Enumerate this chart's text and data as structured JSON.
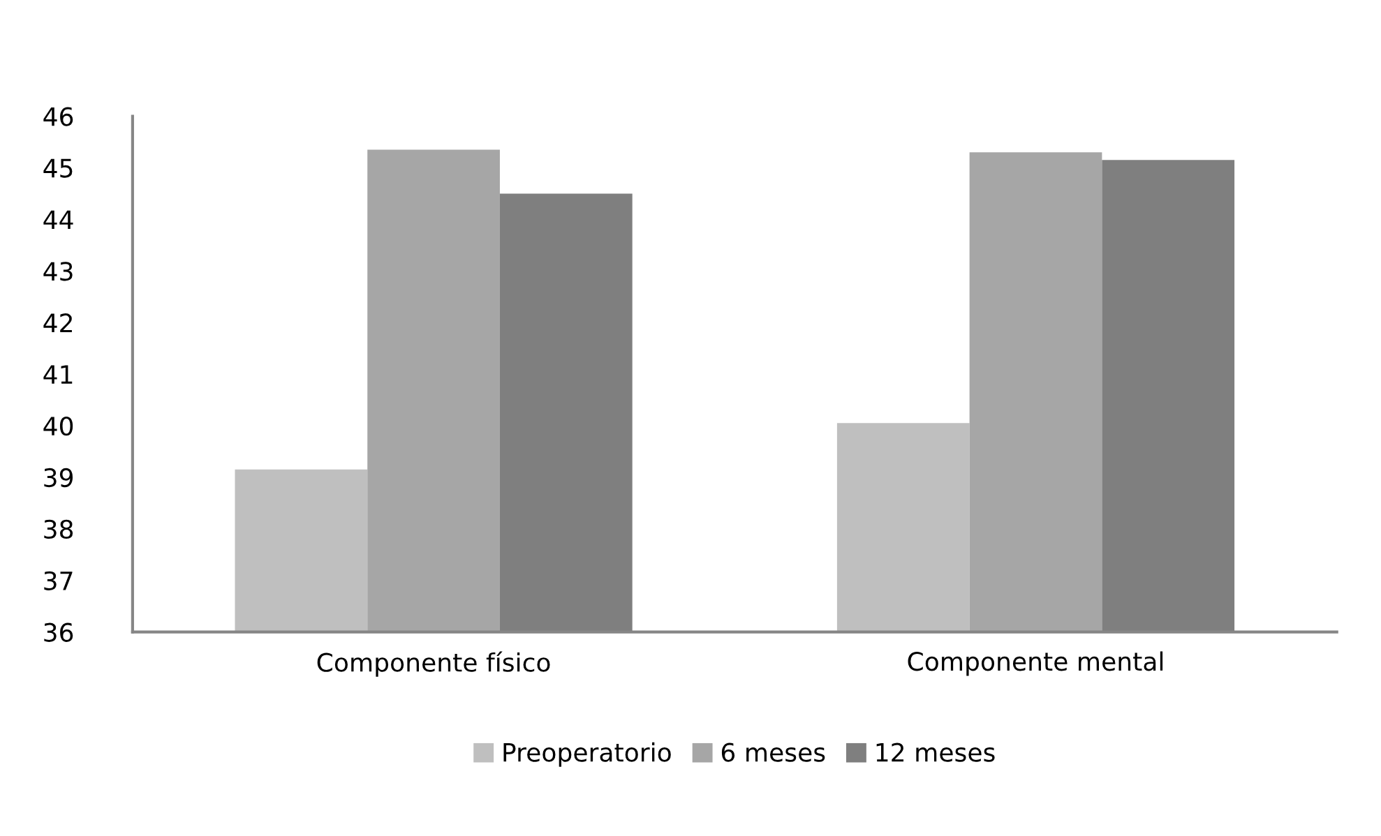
{
  "chart_data": {
    "type": "bar",
    "categories": [
      "Componente físico",
      "Componente mental"
    ],
    "series": [
      {
        "name": "Preoperatorio",
        "color": "#bfbfbf",
        "values": [
          39.15,
          40.05
        ]
      },
      {
        "name": "6 meses",
        "color": "#a6a6a6",
        "values": [
          45.35,
          45.3
        ]
      },
      {
        "name": "12 meses",
        "color": "#7f7f7f",
        "values": [
          44.5,
          45.15
        ]
      }
    ],
    "ylim": [
      36,
      46
    ],
    "yticks": [
      36,
      37,
      38,
      39,
      40,
      41,
      42,
      43,
      44,
      45,
      46
    ],
    "grid": false,
    "legend": "bottom"
  }
}
